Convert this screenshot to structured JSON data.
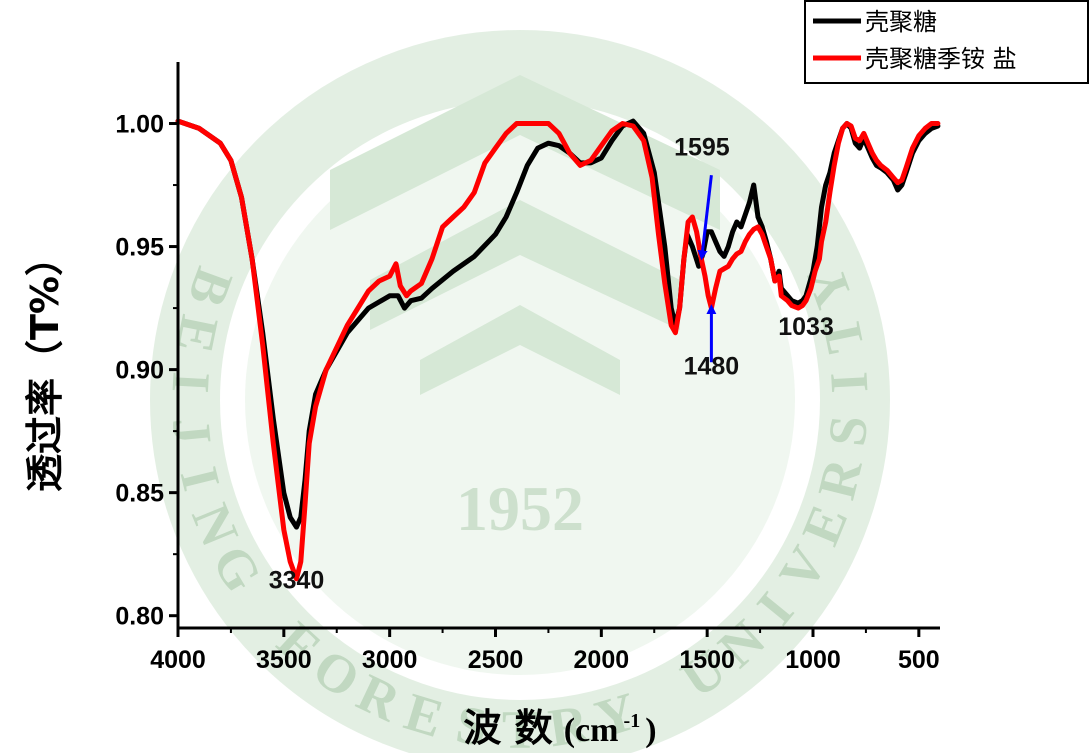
{
  "chart_data": {
    "type": "line",
    "title": "",
    "xlabel": "波 数",
    "xlabel_unit": "(cm",
    "xlabel_sup": "-1",
    "xlabel_close": ")",
    "ylabel": "透过率（T%）",
    "xlim": [
      4000,
      400
    ],
    "ylim": [
      0.795,
      1.025
    ],
    "x_ticks": [
      4000,
      3500,
      3000,
      2500,
      2000,
      1500,
      1000,
      500
    ],
    "x_tick_labels": [
      "4000",
      "3500",
      "3000",
      "2500",
      "2000",
      "1500",
      "1000",
      "500"
    ],
    "y_ticks": [
      0.8,
      0.85,
      0.9,
      0.95,
      1.0
    ],
    "y_tick_labels": [
      "0.80",
      "0.85",
      "0.90",
      "0.95",
      "1.00"
    ],
    "legend_position": "top-right",
    "series": [
      {
        "name": "壳聚糖",
        "color": "#000000",
        "points": [
          [
            4000,
            1.001
          ],
          [
            3900,
            0.998
          ],
          [
            3800,
            0.992
          ],
          [
            3750,
            0.985
          ],
          [
            3700,
            0.97
          ],
          [
            3650,
            0.945
          ],
          [
            3600,
            0.915
          ],
          [
            3550,
            0.88
          ],
          [
            3500,
            0.85
          ],
          [
            3470,
            0.84
          ],
          [
            3440,
            0.836
          ],
          [
            3420,
            0.84
          ],
          [
            3400,
            0.855
          ],
          [
            3380,
            0.875
          ],
          [
            3350,
            0.89
          ],
          [
            3300,
            0.9
          ],
          [
            3200,
            0.915
          ],
          [
            3100,
            0.925
          ],
          [
            3000,
            0.93
          ],
          [
            2960,
            0.93
          ],
          [
            2930,
            0.925
          ],
          [
            2900,
            0.928
          ],
          [
            2850,
            0.929
          ],
          [
            2800,
            0.933
          ],
          [
            2700,
            0.94
          ],
          [
            2600,
            0.946
          ],
          [
            2500,
            0.955
          ],
          [
            2450,
            0.962
          ],
          [
            2400,
            0.972
          ],
          [
            2350,
            0.983
          ],
          [
            2300,
            0.99
          ],
          [
            2250,
            0.992
          ],
          [
            2200,
            0.991
          ],
          [
            2150,
            0.988
          ],
          [
            2100,
            0.984
          ],
          [
            2050,
            0.984
          ],
          [
            2000,
            0.986
          ],
          [
            1950,
            0.993
          ],
          [
            1900,
            0.999
          ],
          [
            1850,
            1.001
          ],
          [
            1800,
            0.996
          ],
          [
            1750,
            0.98
          ],
          [
            1700,
            0.95
          ],
          [
            1670,
            0.925
          ],
          [
            1650,
            0.918
          ],
          [
            1630,
            0.925
          ],
          [
            1610,
            0.945
          ],
          [
            1595,
            0.955
          ],
          [
            1570,
            0.95
          ],
          [
            1540,
            0.942
          ],
          [
            1520,
            0.947
          ],
          [
            1500,
            0.956
          ],
          [
            1480,
            0.956
          ],
          [
            1460,
            0.952
          ],
          [
            1440,
            0.948
          ],
          [
            1420,
            0.946
          ],
          [
            1400,
            0.95
          ],
          [
            1380,
            0.956
          ],
          [
            1360,
            0.96
          ],
          [
            1340,
            0.958
          ],
          [
            1320,
            0.963
          ],
          [
            1300,
            0.968
          ],
          [
            1280,
            0.975
          ],
          [
            1260,
            0.962
          ],
          [
            1240,
            0.958
          ],
          [
            1220,
            0.952
          ],
          [
            1200,
            0.945
          ],
          [
            1180,
            0.936
          ],
          [
            1160,
            0.94
          ],
          [
            1150,
            0.933
          ],
          [
            1120,
            0.93
          ],
          [
            1100,
            0.928
          ],
          [
            1070,
            0.927
          ],
          [
            1050,
            0.928
          ],
          [
            1033,
            0.93
          ],
          [
            1000,
            0.94
          ],
          [
            980,
            0.95
          ],
          [
            960,
            0.966
          ],
          [
            940,
            0.975
          ],
          [
            920,
            0.98
          ],
          [
            900,
            0.988
          ],
          [
            880,
            0.993
          ],
          [
            860,
            0.998
          ],
          [
            840,
            1.0
          ],
          [
            820,
            0.998
          ],
          [
            800,
            0.992
          ],
          [
            780,
            0.99
          ],
          [
            760,
            0.994
          ],
          [
            740,
            0.99
          ],
          [
            720,
            0.986
          ],
          [
            700,
            0.983
          ],
          [
            680,
            0.982
          ],
          [
            650,
            0.98
          ],
          [
            620,
            0.977
          ],
          [
            600,
            0.973
          ],
          [
            580,
            0.975
          ],
          [
            560,
            0.98
          ],
          [
            530,
            0.988
          ],
          [
            500,
            0.993
          ],
          [
            470,
            0.996
          ],
          [
            440,
            0.998
          ],
          [
            410,
            0.999
          ]
        ]
      },
      {
        "name": "壳聚糖季铵 盐",
        "color": "#ff0000",
        "points": [
          [
            4000,
            1.001
          ],
          [
            3900,
            0.998
          ],
          [
            3800,
            0.992
          ],
          [
            3750,
            0.985
          ],
          [
            3700,
            0.97
          ],
          [
            3650,
            0.945
          ],
          [
            3600,
            0.91
          ],
          [
            3550,
            0.87
          ],
          [
            3500,
            0.835
          ],
          [
            3470,
            0.822
          ],
          [
            3440,
            0.815
          ],
          [
            3420,
            0.822
          ],
          [
            3400,
            0.845
          ],
          [
            3380,
            0.87
          ],
          [
            3350,
            0.885
          ],
          [
            3300,
            0.9
          ],
          [
            3200,
            0.918
          ],
          [
            3100,
            0.932
          ],
          [
            3050,
            0.936
          ],
          [
            3000,
            0.938
          ],
          [
            2970,
            0.943
          ],
          [
            2950,
            0.934
          ],
          [
            2920,
            0.93
          ],
          [
            2900,
            0.932
          ],
          [
            2850,
            0.935
          ],
          [
            2800,
            0.945
          ],
          [
            2750,
            0.958
          ],
          [
            2700,
            0.962
          ],
          [
            2650,
            0.966
          ],
          [
            2600,
            0.972
          ],
          [
            2550,
            0.984
          ],
          [
            2500,
            0.99
          ],
          [
            2450,
            0.996
          ],
          [
            2400,
            1.0
          ],
          [
            2300,
            1.0
          ],
          [
            2250,
            1.0
          ],
          [
            2200,
            0.996
          ],
          [
            2150,
            0.988
          ],
          [
            2100,
            0.983
          ],
          [
            2050,
            0.985
          ],
          [
            2000,
            0.991
          ],
          [
            1950,
            0.997
          ],
          [
            1900,
            1.0
          ],
          [
            1850,
            0.999
          ],
          [
            1800,
            0.993
          ],
          [
            1760,
            0.978
          ],
          [
            1730,
            0.955
          ],
          [
            1700,
            0.935
          ],
          [
            1670,
            0.918
          ],
          [
            1650,
            0.915
          ],
          [
            1630,
            0.925
          ],
          [
            1610,
            0.945
          ],
          [
            1590,
            0.96
          ],
          [
            1570,
            0.962
          ],
          [
            1550,
            0.956
          ],
          [
            1530,
            0.946
          ],
          [
            1510,
            0.938
          ],
          [
            1495,
            0.93
          ],
          [
            1480,
            0.925
          ],
          [
            1460,
            0.933
          ],
          [
            1440,
            0.94
          ],
          [
            1420,
            0.941
          ],
          [
            1400,
            0.942
          ],
          [
            1380,
            0.945
          ],
          [
            1360,
            0.947
          ],
          [
            1340,
            0.948
          ],
          [
            1320,
            0.952
          ],
          [
            1300,
            0.955
          ],
          [
            1280,
            0.957
          ],
          [
            1260,
            0.958
          ],
          [
            1240,
            0.955
          ],
          [
            1220,
            0.95
          ],
          [
            1200,
            0.945
          ],
          [
            1180,
            0.936
          ],
          [
            1160,
            0.938
          ],
          [
            1150,
            0.93
          ],
          [
            1120,
            0.928
          ],
          [
            1100,
            0.926
          ],
          [
            1070,
            0.925
          ],
          [
            1050,
            0.926
          ],
          [
            1033,
            0.928
          ],
          [
            1010,
            0.933
          ],
          [
            990,
            0.94
          ],
          [
            970,
            0.945
          ],
          [
            960,
            0.952
          ],
          [
            940,
            0.96
          ],
          [
            920,
            0.972
          ],
          [
            900,
            0.983
          ],
          [
            880,
            0.992
          ],
          [
            860,
            0.998
          ],
          [
            840,
            1.0
          ],
          [
            820,
            0.999
          ],
          [
            800,
            0.994
          ],
          [
            780,
            0.993
          ],
          [
            760,
            0.996
          ],
          [
            740,
            0.992
          ],
          [
            720,
            0.988
          ],
          [
            700,
            0.985
          ],
          [
            680,
            0.983
          ],
          [
            650,
            0.981
          ],
          [
            620,
            0.978
          ],
          [
            600,
            0.976
          ],
          [
            580,
            0.977
          ],
          [
            560,
            0.982
          ],
          [
            530,
            0.99
          ],
          [
            500,
            0.995
          ],
          [
            470,
            0.998
          ],
          [
            440,
            1.0
          ],
          [
            410,
            1.0
          ]
        ]
      }
    ],
    "annotations": [
      {
        "text": "3340",
        "x": 3440,
        "y": 0.811,
        "arrow": false
      },
      {
        "text": "1595",
        "x": 1525,
        "y": 0.987,
        "arrow": true,
        "arrow_color": "#0000ff",
        "arrow_from": [
          1480,
          0.979
        ],
        "arrow_to": [
          1525,
          0.946
        ]
      },
      {
        "text": "1480",
        "x": 1480,
        "y": 0.898,
        "arrow": true,
        "arrow_color": "#0000ff",
        "arrow_from": [
          1480,
          0.903
        ],
        "arrow_to": [
          1480,
          0.925
        ]
      },
      {
        "text": "1033",
        "x": 1033,
        "y": 0.914,
        "arrow": false
      }
    ],
    "watermark": {
      "year": "1952",
      "ring_letters": "BEIJING FORESTRY UNIVERSITY"
    }
  }
}
